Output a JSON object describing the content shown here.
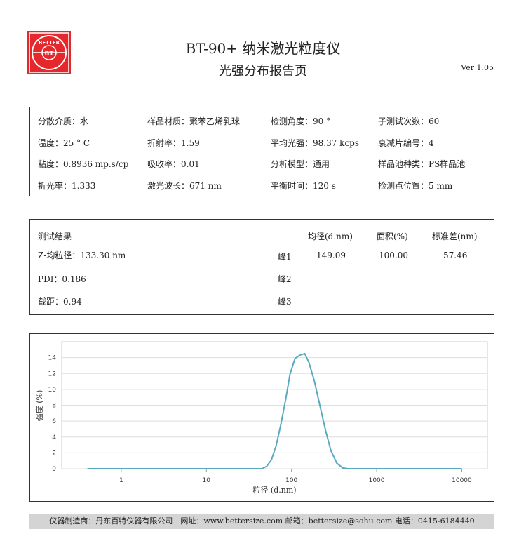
{
  "header": {
    "logo_text": "BETTER BT 百特",
    "title": "BT-90+ 纳米激光粒度仪",
    "subtitle": "光强分布报告页",
    "version": "Ver 1.05"
  },
  "info": [
    [
      "分散介质：水",
      "样品材质：聚苯乙烯乳球",
      "检测角度：90 °",
      "子测试次数：60"
    ],
    [
      "温度：25 ° C",
      "折射率：1.59",
      "平均光强：98.37 kcps",
      "衰减片编号：4"
    ],
    [
      "粘度：0.8936 mp.s/cp",
      "吸收率：0.01",
      "分析模型：通用",
      "样品池种类：PS样品池"
    ],
    [
      "折光率：1.333",
      "激光波长：671 nm",
      "平衡时间：120 s",
      "检测点位置：5 mm"
    ]
  ],
  "results": {
    "title": "测试结果",
    "z_avg": "Z-均粒径：133.30 nm",
    "pdi": "PDI：0.186",
    "intercept": "截距：0.94",
    "headers": [
      "均径(d.nm)",
      "面积(%)",
      "标准差(nm)"
    ],
    "peaks": [
      {
        "label": "峰1",
        "mean": "149.09",
        "area": "100.00",
        "sd": "57.46"
      },
      {
        "label": "峰2",
        "mean": "",
        "area": "",
        "sd": ""
      },
      {
        "label": "峰3",
        "mean": "",
        "area": "",
        "sd": ""
      }
    ]
  },
  "chart_data": {
    "type": "line",
    "xlabel": "粒径 (d.nm)",
    "ylabel": "强度 (%)",
    "xscale": "log",
    "xlim": [
      0.2,
      20000
    ],
    "ylim": [
      0,
      16
    ],
    "grid": "horizontal",
    "line_color": "#5aaabf",
    "xticks": [
      "1",
      "10",
      "100",
      "1000",
      "10000"
    ],
    "yticks": [
      "0",
      "2",
      "4",
      "6",
      "8",
      "10",
      "12",
      "14"
    ],
    "x": [
      0.4,
      1,
      10,
      40,
      45,
      51,
      58,
      66,
      75,
      85,
      96,
      110,
      125,
      143,
      160,
      185,
      215,
      250,
      290,
      340,
      400,
      460,
      600,
      1000,
      10000
    ],
    "y": [
      0,
      0,
      0,
      0,
      0,
      0.3,
      1.1,
      2.9,
      5.6,
      8.6,
      11.9,
      13.9,
      14.3,
      14.5,
      13.4,
      11.1,
      8.0,
      4.9,
      2.3,
      0.7,
      0.1,
      0,
      0,
      0,
      0
    ]
  },
  "footer": "仪器制造商：丹东百特仪器有限公司　网址：www.bettersize.com 邮箱：bettersize@sohu.com 电话：0415-6184440"
}
